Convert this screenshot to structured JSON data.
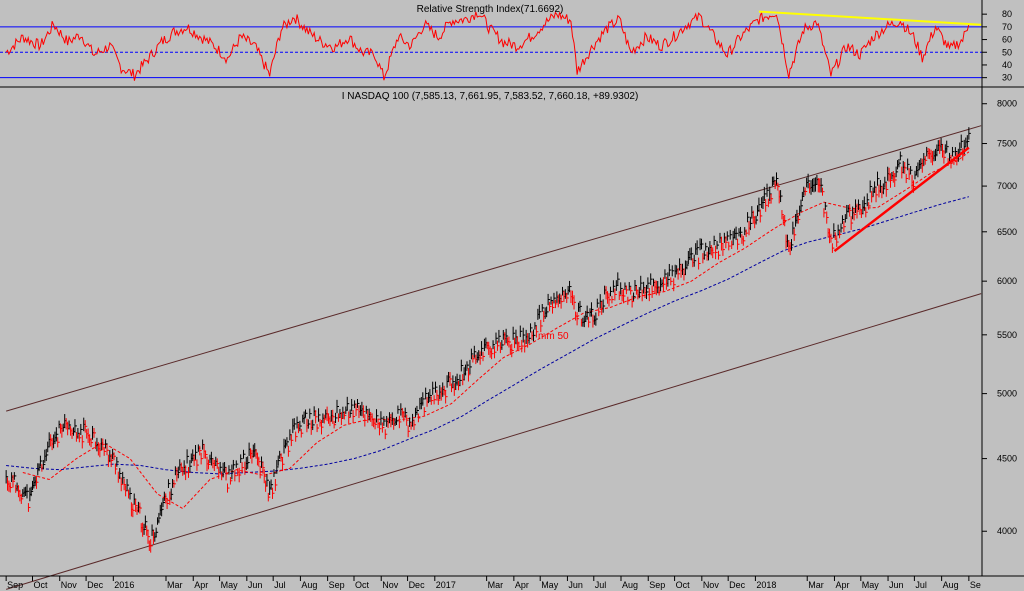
{
  "colors": {
    "background": "#c0c0c0",
    "price_up": "#000000",
    "price_down": "#ff0000",
    "rsi_line": "#ff0000",
    "rsi_bounds": "#0000ff",
    "rsi_trend": "#ffff00",
    "ma_short": "#ff0000",
    "ma_long": "#0000a0",
    "channel": "#5a2a2a",
    "support_trend": "#ff0000"
  },
  "chart_data": [
    {
      "type": "line",
      "title": "Relative Strength Index(71.6692)",
      "ylim": [
        25,
        88
      ],
      "y_ticks": [
        30,
        40,
        50,
        60,
        70,
        80
      ],
      "reference_lines": [
        30,
        50,
        70
      ],
      "points": [
        [
          "2015-09-01",
          50
        ],
        [
          "2015-09-20",
          62
        ],
        [
          "2015-10-10",
          55
        ],
        [
          "2015-10-25",
          72
        ],
        [
          "2015-11-10",
          58
        ],
        [
          "2015-11-25",
          64
        ],
        [
          "2015-12-10",
          48
        ],
        [
          "2015-12-28",
          55
        ],
        [
          "2016-01-10",
          38
        ],
        [
          "2016-01-25",
          32
        ],
        [
          "2016-02-10",
          45
        ],
        [
          "2016-02-25",
          58
        ],
        [
          "2016-03-10",
          66
        ],
        [
          "2016-03-25",
          70
        ],
        [
          "2016-04-10",
          62
        ],
        [
          "2016-04-25",
          55
        ],
        [
          "2016-05-10",
          45
        ],
        [
          "2016-05-25",
          62
        ],
        [
          "2016-06-10",
          55
        ],
        [
          "2016-06-27",
          32
        ],
        [
          "2016-07-10",
          68
        ],
        [
          "2016-07-25",
          78
        ],
        [
          "2016-08-10",
          66
        ],
        [
          "2016-08-25",
          58
        ],
        [
          "2016-09-10",
          54
        ],
        [
          "2016-09-25",
          62
        ],
        [
          "2016-10-10",
          50
        ],
        [
          "2016-10-25",
          48
        ],
        [
          "2016-11-04",
          30
        ],
        [
          "2016-11-20",
          62
        ],
        [
          "2016-12-05",
          55
        ],
        [
          "2016-12-20",
          72
        ],
        [
          "2017-01-05",
          62
        ],
        [
          "2017-01-20",
          75
        ],
        [
          "2017-02-05",
          76
        ],
        [
          "2017-02-20",
          82
        ],
        [
          "2017-03-05",
          68
        ],
        [
          "2017-03-20",
          58
        ],
        [
          "2017-04-05",
          55
        ],
        [
          "2017-04-20",
          62
        ],
        [
          "2017-05-05",
          72
        ],
        [
          "2017-05-20",
          80
        ],
        [
          "2017-06-05",
          75
        ],
        [
          "2017-06-12",
          35
        ],
        [
          "2017-06-30",
          55
        ],
        [
          "2017-07-15",
          68
        ],
        [
          "2017-07-30",
          76
        ],
        [
          "2017-08-12",
          50
        ],
        [
          "2017-08-30",
          62
        ],
        [
          "2017-09-15",
          55
        ],
        [
          "2017-09-30",
          62
        ],
        [
          "2017-10-15",
          72
        ],
        [
          "2017-10-30",
          78
        ],
        [
          "2017-11-15",
          62
        ],
        [
          "2017-11-30",
          48
        ],
        [
          "2017-12-15",
          62
        ],
        [
          "2018-01-05",
          76
        ],
        [
          "2018-01-25",
          82
        ],
        [
          "2018-02-08",
          33
        ],
        [
          "2018-02-25",
          68
        ],
        [
          "2018-03-12",
          74
        ],
        [
          "2018-03-28",
          32
        ],
        [
          "2018-04-15",
          55
        ],
        [
          "2018-04-30",
          48
        ],
        [
          "2018-05-15",
          62
        ],
        [
          "2018-05-30",
          70
        ],
        [
          "2018-06-15",
          75
        ],
        [
          "2018-06-30",
          62
        ],
        [
          "2018-07-10",
          46
        ],
        [
          "2018-07-25",
          70
        ],
        [
          "2018-08-10",
          52
        ],
        [
          "2018-08-25",
          60
        ],
        [
          "2018-09-01",
          72
        ]
      ],
      "trendline": [
        [
          "2018-01-05",
          82
        ],
        [
          "2018-09-15",
          71.67
        ]
      ]
    },
    {
      "type": "line",
      "title": "I NASDAQ 100 (7,585.13, 7,661.95, 7,583.52, 7,660.18, +89.9302)",
      "ylim": [
        3720,
        8180
      ],
      "y_log_scale": true,
      "y_ticks": [
        4000,
        4500,
        5000,
        5500,
        6000,
        6500,
        7000,
        7500,
        8000
      ],
      "x_ticks": [
        "Sep",
        "Oct",
        "Nov",
        "Dec",
        "2016",
        "Mar",
        "Apr",
        "May",
        "Jun",
        "Jul",
        "Aug",
        "Sep",
        "Oct",
        "Nov",
        "Dec",
        "2017",
        "Mar",
        "Apr",
        "May",
        "Jun",
        "Jul",
        "Aug",
        "Sep",
        "Oct",
        "Nov",
        "Dec",
        "2018",
        "Mar",
        "Apr",
        "May",
        "Jun",
        "Jul",
        "Aug",
        "Se"
      ],
      "ma_label": "mm 50",
      "series": [
        {
          "role": "price",
          "points": [
            [
              "2015-09-01",
              4350
            ],
            [
              "2015-09-15",
              4300
            ],
            [
              "2015-09-28",
              4200
            ],
            [
              "2015-10-10",
              4450
            ],
            [
              "2015-10-25",
              4650
            ],
            [
              "2015-11-05",
              4720
            ],
            [
              "2015-11-20",
              4680
            ],
            [
              "2015-12-05",
              4700
            ],
            [
              "2015-12-20",
              4580
            ],
            [
              "2016-01-05",
              4450
            ],
            [
              "2016-01-20",
              4200
            ],
            [
              "2016-02-05",
              4050
            ],
            [
              "2016-02-11",
              3900
            ],
            [
              "2016-02-25",
              4150
            ],
            [
              "2016-03-10",
              4350
            ],
            [
              "2016-03-25",
              4450
            ],
            [
              "2016-04-10",
              4550
            ],
            [
              "2016-04-25",
              4500
            ],
            [
              "2016-05-10",
              4350
            ],
            [
              "2016-05-25",
              4450
            ],
            [
              "2016-06-10",
              4550
            ],
            [
              "2016-06-27",
              4250
            ],
            [
              "2016-07-10",
              4500
            ],
            [
              "2016-07-25",
              4700
            ],
            [
              "2016-08-10",
              4800
            ],
            [
              "2016-08-25",
              4780
            ],
            [
              "2016-09-10",
              4820
            ],
            [
              "2016-09-25",
              4870
            ],
            [
              "2016-10-10",
              4850
            ],
            [
              "2016-10-25",
              4800
            ],
            [
              "2016-11-04",
              4720
            ],
            [
              "2016-11-20",
              4820
            ],
            [
              "2016-12-05",
              4750
            ],
            [
              "2016-12-20",
              4930
            ],
            [
              "2017-01-05",
              5000
            ],
            [
              "2017-01-20",
              5080
            ],
            [
              "2017-02-05",
              5200
            ],
            [
              "2017-02-20",
              5350
            ],
            [
              "2017-03-05",
              5400
            ],
            [
              "2017-03-20",
              5420
            ],
            [
              "2017-04-05",
              5450
            ],
            [
              "2017-04-20",
              5500
            ],
            [
              "2017-05-05",
              5700
            ],
            [
              "2017-05-20",
              5820
            ],
            [
              "2017-06-05",
              5880
            ],
            [
              "2017-06-12",
              5700
            ],
            [
              "2017-06-30",
              5650
            ],
            [
              "2017-07-15",
              5850
            ],
            [
              "2017-07-30",
              5950
            ],
            [
              "2017-08-12",
              5850
            ],
            [
              "2017-08-30",
              5930
            ],
            [
              "2017-09-15",
              5980
            ],
            [
              "2017-09-30",
              6050
            ],
            [
              "2017-10-15",
              6150
            ],
            [
              "2017-10-30",
              6280
            ],
            [
              "2017-11-15",
              6320
            ],
            [
              "2017-11-30",
              6380
            ],
            [
              "2017-12-15",
              6450
            ],
            [
              "2018-01-05",
              6750
            ],
            [
              "2018-01-25",
              7020
            ],
            [
              "2018-02-08",
              6320
            ],
            [
              "2018-02-25",
              6900
            ],
            [
              "2018-03-12",
              7150
            ],
            [
              "2018-03-28",
              6380
            ],
            [
              "2018-04-15",
              6650
            ],
            [
              "2018-04-30",
              6700
            ],
            [
              "2018-05-15",
              6950
            ],
            [
              "2018-05-30",
              7050
            ],
            [
              "2018-06-15",
              7250
            ],
            [
              "2018-06-30",
              7100
            ],
            [
              "2018-07-10",
              7250
            ],
            [
              "2018-07-25",
              7400
            ],
            [
              "2018-08-10",
              7350
            ],
            [
              "2018-08-25",
              7450
            ],
            [
              "2018-09-01",
              7660
            ]
          ]
        },
        {
          "role": "ma_short",
          "name": "mm 50",
          "points": [
            [
              "2015-09-20",
              4400
            ],
            [
              "2015-10-20",
              4350
            ],
            [
              "2015-11-20",
              4500
            ],
            [
              "2015-12-20",
              4620
            ],
            [
              "2016-01-20",
              4500
            ],
            [
              "2016-02-20",
              4250
            ],
            [
              "2016-03-20",
              4150
            ],
            [
              "2016-04-20",
              4350
            ],
            [
              "2016-05-20",
              4420
            ],
            [
              "2016-06-20",
              4380
            ],
            [
              "2016-07-20",
              4430
            ],
            [
              "2016-08-20",
              4620
            ],
            [
              "2016-09-20",
              4750
            ],
            [
              "2016-10-20",
              4800
            ],
            [
              "2016-11-20",
              4790
            ],
            [
              "2016-12-20",
              4820
            ],
            [
              "2017-01-20",
              4920
            ],
            [
              "2017-02-20",
              5120
            ],
            [
              "2017-03-20",
              5300
            ],
            [
              "2017-04-20",
              5420
            ],
            [
              "2017-05-20",
              5560
            ],
            [
              "2017-06-20",
              5700
            ],
            [
              "2017-07-20",
              5750
            ],
            [
              "2017-08-20",
              5850
            ],
            [
              "2017-09-20",
              5900
            ],
            [
              "2017-10-20",
              6000
            ],
            [
              "2017-11-20",
              6180
            ],
            [
              "2017-12-20",
              6330
            ],
            [
              "2018-01-20",
              6520
            ],
            [
              "2018-02-20",
              6700
            ],
            [
              "2018-03-20",
              6820
            ],
            [
              "2018-04-20",
              6750
            ],
            [
              "2018-05-20",
              6760
            ],
            [
              "2018-06-20",
              6950
            ],
            [
              "2018-07-20",
              7150
            ],
            [
              "2018-08-20",
              7300
            ],
            [
              "2018-09-01",
              7400
            ]
          ]
        },
        {
          "role": "ma_long",
          "points": [
            [
              "2015-09-01",
              4450
            ],
            [
              "2015-10-01",
              4430
            ],
            [
              "2015-11-01",
              4420
            ],
            [
              "2015-12-01",
              4440
            ],
            [
              "2016-01-01",
              4460
            ],
            [
              "2016-02-01",
              4450
            ],
            [
              "2016-03-01",
              4420
            ],
            [
              "2016-04-01",
              4400
            ],
            [
              "2016-05-01",
              4390
            ],
            [
              "2016-06-01",
              4400
            ],
            [
              "2016-07-01",
              4410
            ],
            [
              "2016-08-01",
              4430
            ],
            [
              "2016-09-01",
              4460
            ],
            [
              "2016-10-01",
              4500
            ],
            [
              "2016-11-01",
              4560
            ],
            [
              "2016-12-01",
              4640
            ],
            [
              "2017-01-01",
              4720
            ],
            [
              "2017-02-01",
              4820
            ],
            [
              "2017-03-01",
              4940
            ],
            [
              "2017-04-01",
              5070
            ],
            [
              "2017-05-01",
              5200
            ],
            [
              "2017-06-01",
              5330
            ],
            [
              "2017-07-01",
              5460
            ],
            [
              "2017-08-01",
              5580
            ],
            [
              "2017-09-01",
              5700
            ],
            [
              "2017-10-01",
              5810
            ],
            [
              "2017-11-01",
              5910
            ],
            [
              "2017-12-01",
              6020
            ],
            [
              "2018-01-01",
              6160
            ],
            [
              "2018-02-01",
              6300
            ],
            [
              "2018-03-01",
              6390
            ],
            [
              "2018-04-01",
              6460
            ],
            [
              "2018-05-01",
              6530
            ],
            [
              "2018-06-01",
              6620
            ],
            [
              "2018-07-01",
              6710
            ],
            [
              "2018-08-01",
              6800
            ],
            [
              "2018-09-01",
              6880
            ]
          ]
        }
      ],
      "channel_upper": [
        [
          "2015-09-01",
          4860
        ],
        [
          "2018-09-15",
          7720
        ]
      ],
      "channel_lower": [
        [
          "2015-09-01",
          3640
        ],
        [
          "2018-09-15",
          5880
        ]
      ],
      "support_trend": [
        [
          "2018-04-01",
          6300
        ],
        [
          "2018-09-01",
          7450
        ]
      ]
    }
  ]
}
